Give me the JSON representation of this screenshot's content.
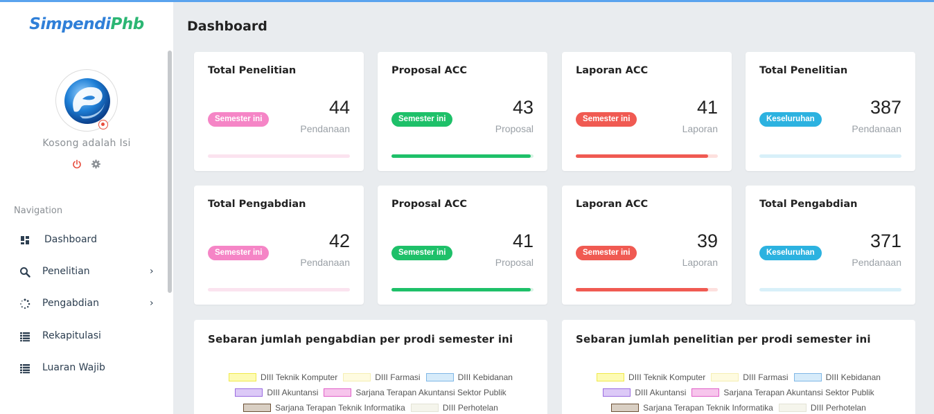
{
  "app": {
    "logo_part1": "Simpendi",
    "logo_part2": "Phb"
  },
  "user": {
    "name": "Kosong adalah Isi"
  },
  "nav": {
    "heading": "Navigation",
    "items": [
      {
        "label": "Dashboard",
        "icon": "grid-icon"
      },
      {
        "label": "Penelitian",
        "icon": "search-icon",
        "has_children": true
      },
      {
        "label": "Pengabdian",
        "icon": "spinner-icon",
        "has_children": true
      },
      {
        "label": "Rekapitulasi",
        "icon": "list-icon"
      },
      {
        "label": "Luaran Wajib",
        "icon": "list-icon"
      }
    ],
    "chevron": "›"
  },
  "page": {
    "title": "Dashboard"
  },
  "cards": [
    {
      "title": "Total Penelitian",
      "badge": "Semester ini",
      "badge_color": "#f585c6",
      "value": "44",
      "unit": "Pendanaan",
      "bar_color": "#fbe3ef",
      "fill_color": "#f585c6",
      "progress": 0
    },
    {
      "title": "Proposal ACC",
      "badge": "Semester ini",
      "badge_color": "#1ec069",
      "value": "43",
      "unit": "Proposal",
      "bar_color": "#d7f3e4",
      "fill_color": "#1ec069",
      "progress": 0.98
    },
    {
      "title": "Laporan ACC",
      "badge": "Semester ini",
      "badge_color": "#f05a52",
      "value": "41",
      "unit": "Laporan",
      "bar_color": "#fde0de",
      "fill_color": "#f05a52",
      "progress": 0.93
    },
    {
      "title": "Total Penelitian",
      "badge": "Keseluruhan",
      "badge_color": "#2cb2e0",
      "value": "387",
      "unit": "Pendanaan",
      "bar_color": "#d8f0f9",
      "fill_color": "#2cb2e0",
      "progress": 0
    },
    {
      "title": "Total Pengabdian",
      "badge": "Semester ini",
      "badge_color": "#f585c6",
      "value": "42",
      "unit": "Pendanaan",
      "bar_color": "#fbe3ef",
      "fill_color": "#f585c6",
      "progress": 0
    },
    {
      "title": "Proposal ACC",
      "badge": "Semester ini",
      "badge_color": "#1ec069",
      "value": "41",
      "unit": "Proposal",
      "bar_color": "#d7f3e4",
      "fill_color": "#1ec069",
      "progress": 0.98
    },
    {
      "title": "Laporan ACC",
      "badge": "Semester ini",
      "badge_color": "#f05a52",
      "value": "39",
      "unit": "Laporan",
      "bar_color": "#fde0de",
      "fill_color": "#f05a52",
      "progress": 0.93
    },
    {
      "title": "Total Pengabdian",
      "badge": "Keseluruhan",
      "badge_color": "#2cb2e0",
      "value": "371",
      "unit": "Pendanaan",
      "bar_color": "#d8f0f9",
      "fill_color": "#2cb2e0",
      "progress": 0
    }
  ],
  "panels": [
    {
      "title": "Sebaran jumlah pengabdian per prodi semester ini"
    },
    {
      "title": "Sebaran jumlah penelitian per prodi semester ini"
    }
  ],
  "legend": [
    [
      {
        "label": "DIII Teknik Komputer",
        "bg": "#fdfbb4",
        "border": "#f0e94a"
      },
      {
        "label": "DIII Farmasi",
        "bg": "#fefbe0",
        "border": "#f5efb3"
      },
      {
        "label": "DIII Kebidanan",
        "bg": "#d6ebfa",
        "border": "#7fb7e6"
      }
    ],
    [
      {
        "label": "DIII Akuntansi",
        "bg": "#dcc9f7",
        "border": "#9b6be0"
      },
      {
        "label": "Sarjana Terapan Akuntansi Sektor Publik",
        "bg": "#f7c5ec",
        "border": "#e060c8"
      }
    ],
    [
      {
        "label": "Sarjana Terapan Teknik Informatika",
        "bg": "#d9cfc3",
        "border": "#6b4f34"
      },
      {
        "label": "DIII Perhotelan",
        "bg": "#f5f5ec",
        "border": "#e3e3d5"
      }
    ]
  ]
}
